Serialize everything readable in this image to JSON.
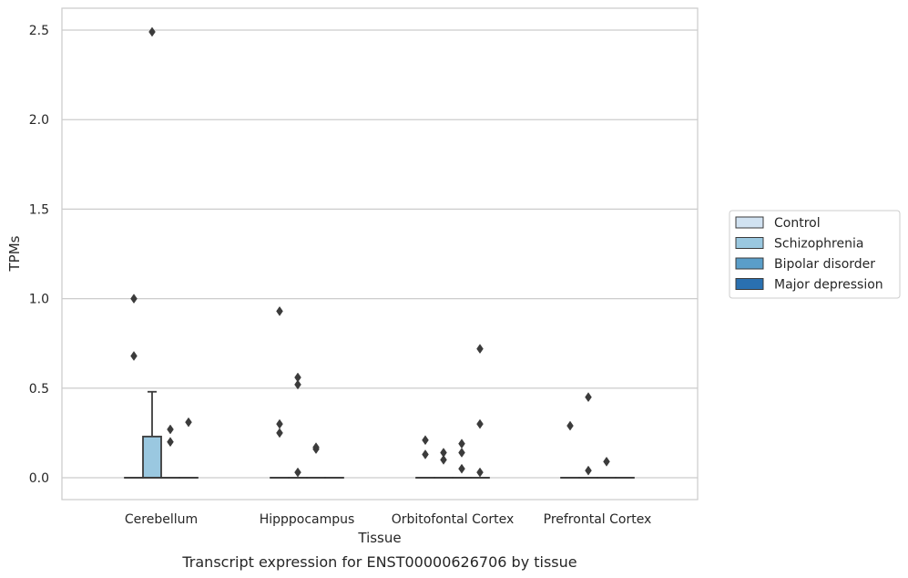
{
  "chart_data": {
    "type": "box",
    "title": "",
    "caption": "Transcript expression for ENST00000626706 by tissue",
    "xlabel": "Tissue",
    "ylabel": "TPMs",
    "ylim": [
      -0.12,
      2.62
    ],
    "yticks": [
      0.0,
      0.5,
      1.0,
      1.5,
      2.0,
      2.5
    ],
    "ytick_labels": [
      "0.0",
      "0.5",
      "1.0",
      "1.5",
      "2.0",
      "2.5"
    ],
    "grid": "horizontal",
    "legend_position": "right",
    "categories": [
      "Cerebellum",
      "Hipppocampus",
      "Orbitofontal Cortex",
      "Prefrontal Cortex"
    ],
    "series": [
      {
        "name": "Control",
        "color": "#d1e2f1",
        "boxes": [
          {
            "q1": 0.0,
            "median": 0.0,
            "q3": 0.0,
            "whisker_low": 0.0,
            "whisker_high": 0.0,
            "outliers": [
              0.68,
              1.0
            ]
          },
          {
            "q1": 0.0,
            "median": 0.0,
            "q3": 0.0,
            "whisker_low": 0.0,
            "whisker_high": 0.0,
            "outliers": [
              0.25,
              0.3,
              0.93
            ]
          },
          {
            "q1": 0.0,
            "median": 0.0,
            "q3": 0.0,
            "whisker_low": 0.0,
            "whisker_high": 0.0,
            "outliers": [
              0.13,
              0.21
            ]
          },
          {
            "q1": 0.0,
            "median": 0.0,
            "q3": 0.0,
            "whisker_low": 0.0,
            "whisker_high": 0.0,
            "outliers": [
              0.29
            ]
          }
        ]
      },
      {
        "name": "Schizophrenia",
        "color": "#9ac8e0",
        "boxes": [
          {
            "q1": 0.0,
            "median": 0.0,
            "q3": 0.23,
            "whisker_low": 0.0,
            "whisker_high": 0.48,
            "outliers": [
              2.49
            ]
          },
          {
            "q1": 0.0,
            "median": 0.0,
            "q3": 0.0,
            "whisker_low": 0.0,
            "whisker_high": 0.0,
            "outliers": [
              0.03,
              0.52,
              0.56
            ]
          },
          {
            "q1": 0.0,
            "median": 0.0,
            "q3": 0.0,
            "whisker_low": 0.0,
            "whisker_high": 0.0,
            "outliers": [
              0.1,
              0.14
            ]
          },
          {
            "q1": 0.0,
            "median": 0.0,
            "q3": 0.0,
            "whisker_low": 0.0,
            "whisker_high": 0.0,
            "outliers": [
              0.04,
              0.45
            ]
          }
        ]
      },
      {
        "name": "Bipolar disorder",
        "color": "#5a9ec9",
        "boxes": [
          {
            "q1": 0.0,
            "median": 0.0,
            "q3": 0.0,
            "whisker_low": 0.0,
            "whisker_high": 0.0,
            "outliers": [
              0.2,
              0.27
            ]
          },
          {
            "q1": 0.0,
            "median": 0.0,
            "q3": 0.0,
            "whisker_low": 0.0,
            "whisker_high": 0.0,
            "outliers": [
              0.16,
              0.17
            ]
          },
          {
            "q1": 0.0,
            "median": 0.0,
            "q3": 0.0,
            "whisker_low": 0.0,
            "whisker_high": 0.0,
            "outliers": [
              0.05,
              0.14,
              0.19
            ]
          },
          {
            "q1": 0.0,
            "median": 0.0,
            "q3": 0.0,
            "whisker_low": 0.0,
            "whisker_high": 0.0,
            "outliers": [
              0.09
            ]
          }
        ]
      },
      {
        "name": "Major depression",
        "color": "#2a70b0",
        "boxes": [
          {
            "q1": 0.0,
            "median": 0.0,
            "q3": 0.0,
            "whisker_low": 0.0,
            "whisker_high": 0.0,
            "outliers": [
              0.31
            ]
          },
          {
            "q1": 0.0,
            "median": 0.0,
            "q3": 0.0,
            "whisker_low": 0.0,
            "whisker_high": 0.0,
            "outliers": []
          },
          {
            "q1": 0.0,
            "median": 0.0,
            "q3": 0.0,
            "whisker_low": 0.0,
            "whisker_high": 0.0,
            "outliers": [
              0.03,
              0.3,
              0.72
            ]
          },
          {
            "q1": 0.0,
            "median": 0.0,
            "q3": 0.0,
            "whisker_low": 0.0,
            "whisker_high": 0.0,
            "outliers": []
          }
        ]
      }
    ]
  }
}
